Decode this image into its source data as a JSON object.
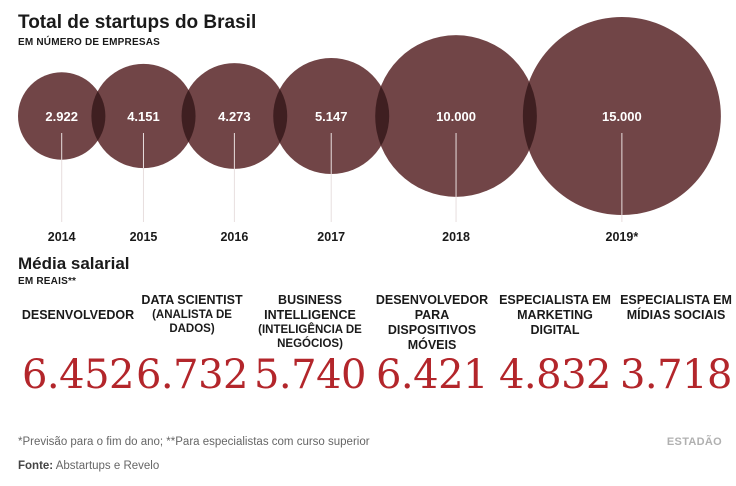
{
  "title": "Total de startups do Brasil",
  "subtitle": "EM NÚMERO DE EMPRESAS",
  "colors": {
    "bubble": "#714547",
    "overlap": "#3f1f21",
    "salary": "#b3262b",
    "line": "#e8dede"
  },
  "chart_data": [
    {
      "type": "bubble",
      "title": "Total de startups do Brasil",
      "subtitle": "EM NÚMERO DE EMPRESAS",
      "categories": [
        "2014",
        "2015",
        "2016",
        "2017",
        "2018",
        "2019*"
      ],
      "values": [
        2922,
        4151,
        4273,
        5147,
        10000,
        15000
      ],
      "value_labels": [
        "2.922",
        "4.151",
        "4.273",
        "5.147",
        "10.000",
        "15.000"
      ]
    },
    {
      "type": "table",
      "title": "Média salarial",
      "subtitle": "EM REAIS**",
      "categories": [
        {
          "main": "DESENVOLVEDOR",
          "paren": ""
        },
        {
          "main": "DATA SCIENTIST",
          "paren": "(ANALISTA DE DADOS)"
        },
        {
          "main": "BUSINESS INTELLIGENCE",
          "paren": "(INTELIGÊNCIA DE NEGÓCIOS)"
        },
        {
          "main": "DESENVOLVEDOR PARA DISPOSITIVOS MÓVEIS",
          "paren": ""
        },
        {
          "main": "ESPECIALISTA EM MARKETING DIGITAL",
          "paren": ""
        },
        {
          "main": "ESPECIALISTA EM MÍDIAS SOCIAIS",
          "paren": ""
        }
      ],
      "values": [
        6452,
        6732,
        5740,
        6421,
        4832,
        3718
      ],
      "value_labels": [
        "6.452",
        "6.732",
        "5.740",
        "6.421",
        "4.832",
        "3.718"
      ]
    }
  ],
  "footnote": "*Previsão para o fim do ano; **Para especialistas com curso superior",
  "source_label": "Fonte:",
  "source_text": "Abstartups e Revelo",
  "logo": "ESTADÃO"
}
